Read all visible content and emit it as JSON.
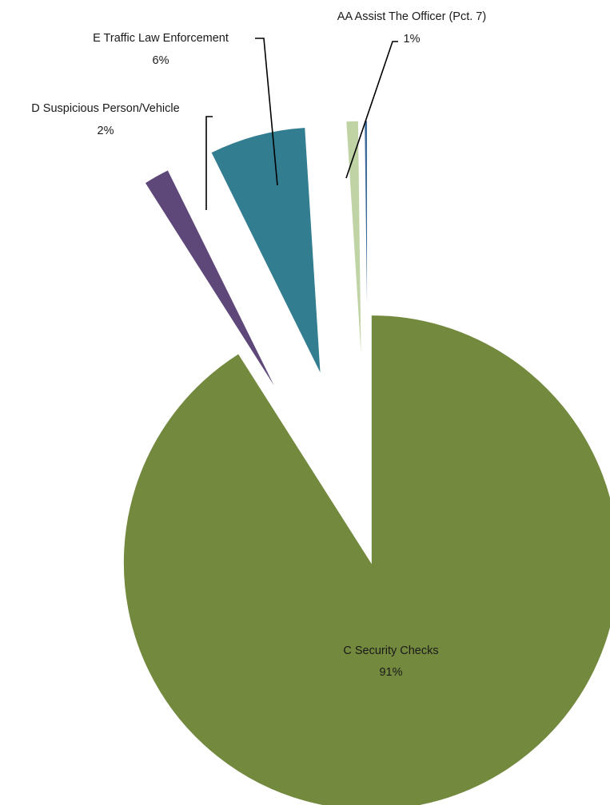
{
  "chart_data": {
    "type": "pie",
    "exploded": true,
    "data_labels": "category name and percentage",
    "slices": [
      {
        "name": "C Security Checks",
        "label": "91%",
        "value": 91.0,
        "color": "#73893E"
      },
      {
        "name": "D Suspicious Person/Vehicle",
        "label": "2%",
        "value": 1.7,
        "color": "#5E4779"
      },
      {
        "name": "E Traffic Law Enforcement",
        "label": "6%",
        "value": 6.3,
        "color": "#337D91"
      },
      {
        "name": "AA Assist The Officer (Pct. 7)",
        "label": "1%",
        "value": 0.8,
        "color": "#BFD3A4"
      },
      {
        "name": "",
        "label": "",
        "value": 0.2,
        "color": "#3E6B99"
      }
    ]
  }
}
